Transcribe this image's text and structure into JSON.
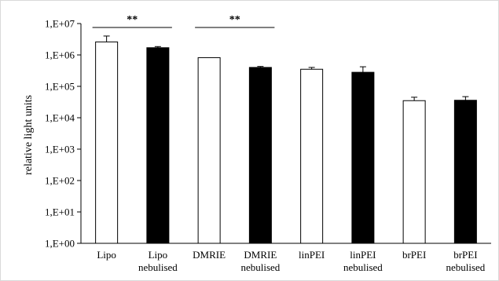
{
  "chart_data": {
    "type": "bar",
    "scale": "log",
    "ylabel": "relative light units",
    "ylim": [
      1,
      10000000
    ],
    "yticks": [
      "1,E+00",
      "1,E+01",
      "1,E+02",
      "1,E+03",
      "1,E+04",
      "1,E+05",
      "1,E+06",
      "1,E+07"
    ],
    "grid": false,
    "categories": [
      [
        "Lipo"
      ],
      [
        "Lipo",
        "nebulised"
      ],
      [
        "DMRIE"
      ],
      [
        "DMRIE",
        "nebulised"
      ],
      [
        "linPEI"
      ],
      [
        "linPEI",
        "nebulised"
      ],
      [
        "brPEI"
      ],
      [
        "brPEI",
        "nebulised"
      ]
    ],
    "values": [
      2600000,
      1700000,
      820000,
      400000,
      350000,
      280000,
      35000,
      36000
    ],
    "errors": [
      1400000,
      150000,
      0,
      30000,
      50000,
      140000,
      10000,
      11000
    ],
    "fills": [
      "#ffffff",
      "#000000",
      "#ffffff",
      "#000000",
      "#ffffff",
      "#000000",
      "#ffffff",
      "#000000"
    ],
    "annotations": [
      {
        "from": 0,
        "to": 1,
        "label": "**"
      },
      {
        "from": 2,
        "to": 3,
        "label": "**"
      }
    ]
  }
}
